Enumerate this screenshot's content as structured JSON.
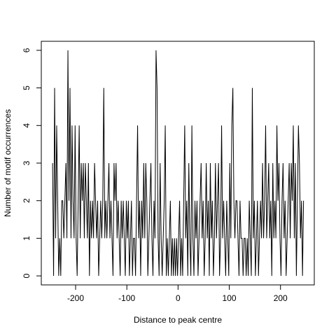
{
  "chart_data": {
    "type": "line",
    "xlabel": "Distance to peak centre",
    "ylabel": "Number of motif occurrences",
    "color": "#000000",
    "xlim": [
      -267,
      266
    ],
    "ylim": [
      -0.24,
      6.24
    ],
    "xticks": [
      -200,
      -100,
      0,
      100,
      200
    ],
    "yticks": [
      0,
      1,
      2,
      3,
      4,
      5,
      6
    ],
    "x": [
      -245,
      -243,
      -241,
      -239,
      -237,
      -235,
      -233,
      -231,
      -229,
      -227,
      -225,
      -223,
      -221,
      -219,
      -217,
      -215,
      -213,
      -211,
      -209,
      -207,
      -205,
      -203,
      -201,
      -199,
      -197,
      -195,
      -193,
      -191,
      -189,
      -187,
      -185,
      -183,
      -181,
      -179,
      -177,
      -175,
      -173,
      -171,
      -169,
      -167,
      -165,
      -163,
      -161,
      -159,
      -157,
      -155,
      -153,
      -151,
      -149,
      -147,
      -145,
      -143,
      -141,
      -139,
      -137,
      -135,
      -133,
      -131,
      -129,
      -127,
      -125,
      -123,
      -121,
      -119,
      -117,
      -115,
      -113,
      -111,
      -109,
      -107,
      -105,
      -103,
      -101,
      -99,
      -97,
      -95,
      -93,
      -91,
      -89,
      -87,
      -85,
      -83,
      -81,
      -79,
      -77,
      -75,
      -73,
      -71,
      -69,
      -67,
      -65,
      -63,
      -61,
      -59,
      -57,
      -55,
      -53,
      -51,
      -49,
      -47,
      -45,
      -43,
      -41,
      -39,
      -37,
      -35,
      -33,
      -31,
      -29,
      -27,
      -25,
      -23,
      -21,
      -19,
      -17,
      -15,
      -13,
      -11,
      -9,
      -7,
      -5,
      -3,
      -1,
      1,
      3,
      5,
      7,
      9,
      11,
      13,
      15,
      17,
      19,
      21,
      23,
      25,
      27,
      29,
      31,
      33,
      35,
      37,
      39,
      41,
      43,
      45,
      47,
      49,
      51,
      53,
      55,
      57,
      59,
      61,
      63,
      65,
      67,
      69,
      71,
      73,
      75,
      77,
      79,
      81,
      83,
      85,
      87,
      89,
      91,
      93,
      95,
      97,
      99,
      101,
      103,
      105,
      107,
      109,
      111,
      113,
      115,
      117,
      119,
      121,
      123,
      125,
      127,
      129,
      131,
      133,
      135,
      137,
      139,
      141,
      143,
      145,
      147,
      149,
      151,
      153,
      155,
      157,
      159,
      161,
      163,
      165,
      167,
      169,
      171,
      173,
      175,
      177,
      179,
      181,
      183,
      185,
      187,
      189,
      191,
      193,
      195,
      197,
      199,
      201,
      203,
      205,
      207,
      209,
      211,
      213,
      215,
      217,
      219,
      221,
      223,
      225,
      227,
      229,
      231,
      233,
      235,
      237,
      239,
      241,
      243,
      245
    ],
    "values": [
      3,
      0,
      5,
      1,
      4,
      2,
      0,
      1,
      0,
      2,
      2,
      1,
      2,
      3,
      1,
      6,
      2,
      5,
      1,
      4,
      2,
      1,
      4,
      1,
      0,
      2,
      4,
      1,
      3,
      2,
      3,
      1,
      3,
      2,
      1,
      3,
      0,
      2,
      1,
      2,
      1,
      3,
      2,
      1,
      2,
      0,
      1,
      2,
      1,
      2,
      5,
      1,
      2,
      1,
      2,
      3,
      1,
      2,
      1,
      0,
      3,
      2,
      3,
      1,
      2,
      1,
      0,
      2,
      1,
      2,
      1,
      0,
      2,
      1,
      2,
      0,
      1,
      2,
      0,
      1,
      1,
      0,
      2,
      4,
      1,
      2,
      0,
      2,
      1,
      3,
      1,
      3,
      2,
      0,
      1,
      2,
      3,
      1,
      0,
      2,
      1,
      6,
      5,
      1,
      0,
      3,
      1,
      0,
      1,
      2,
      4,
      0,
      1,
      0,
      1,
      2,
      0,
      1,
      0,
      1,
      0,
      1,
      0,
      1,
      2,
      0,
      1,
      0,
      2,
      4,
      1,
      2,
      0,
      3,
      1,
      0,
      4,
      1,
      0,
      2,
      1,
      2,
      0,
      1,
      2,
      3,
      1,
      2,
      0,
      1,
      3,
      1,
      2,
      0,
      3,
      1,
      2,
      0,
      1,
      3,
      1,
      2,
      3,
      0,
      1,
      4,
      1,
      2,
      1,
      0,
      2,
      1,
      0,
      3,
      1,
      4,
      5,
      2,
      1,
      2,
      2,
      1,
      0,
      2,
      1,
      1,
      0,
      1,
      1,
      0,
      1,
      0,
      2,
      1,
      0,
      5,
      1,
      2,
      0,
      1,
      2,
      0,
      1,
      2,
      1,
      3,
      1,
      2,
      4,
      1,
      2,
      3,
      1,
      2,
      0,
      3,
      1,
      2,
      1,
      4,
      2,
      3,
      1,
      0,
      2,
      3,
      1,
      2,
      0,
      1,
      2,
      3,
      1,
      3,
      2,
      4,
      1,
      3,
      0,
      2,
      4,
      3,
      1,
      2,
      0,
      2
    ]
  }
}
